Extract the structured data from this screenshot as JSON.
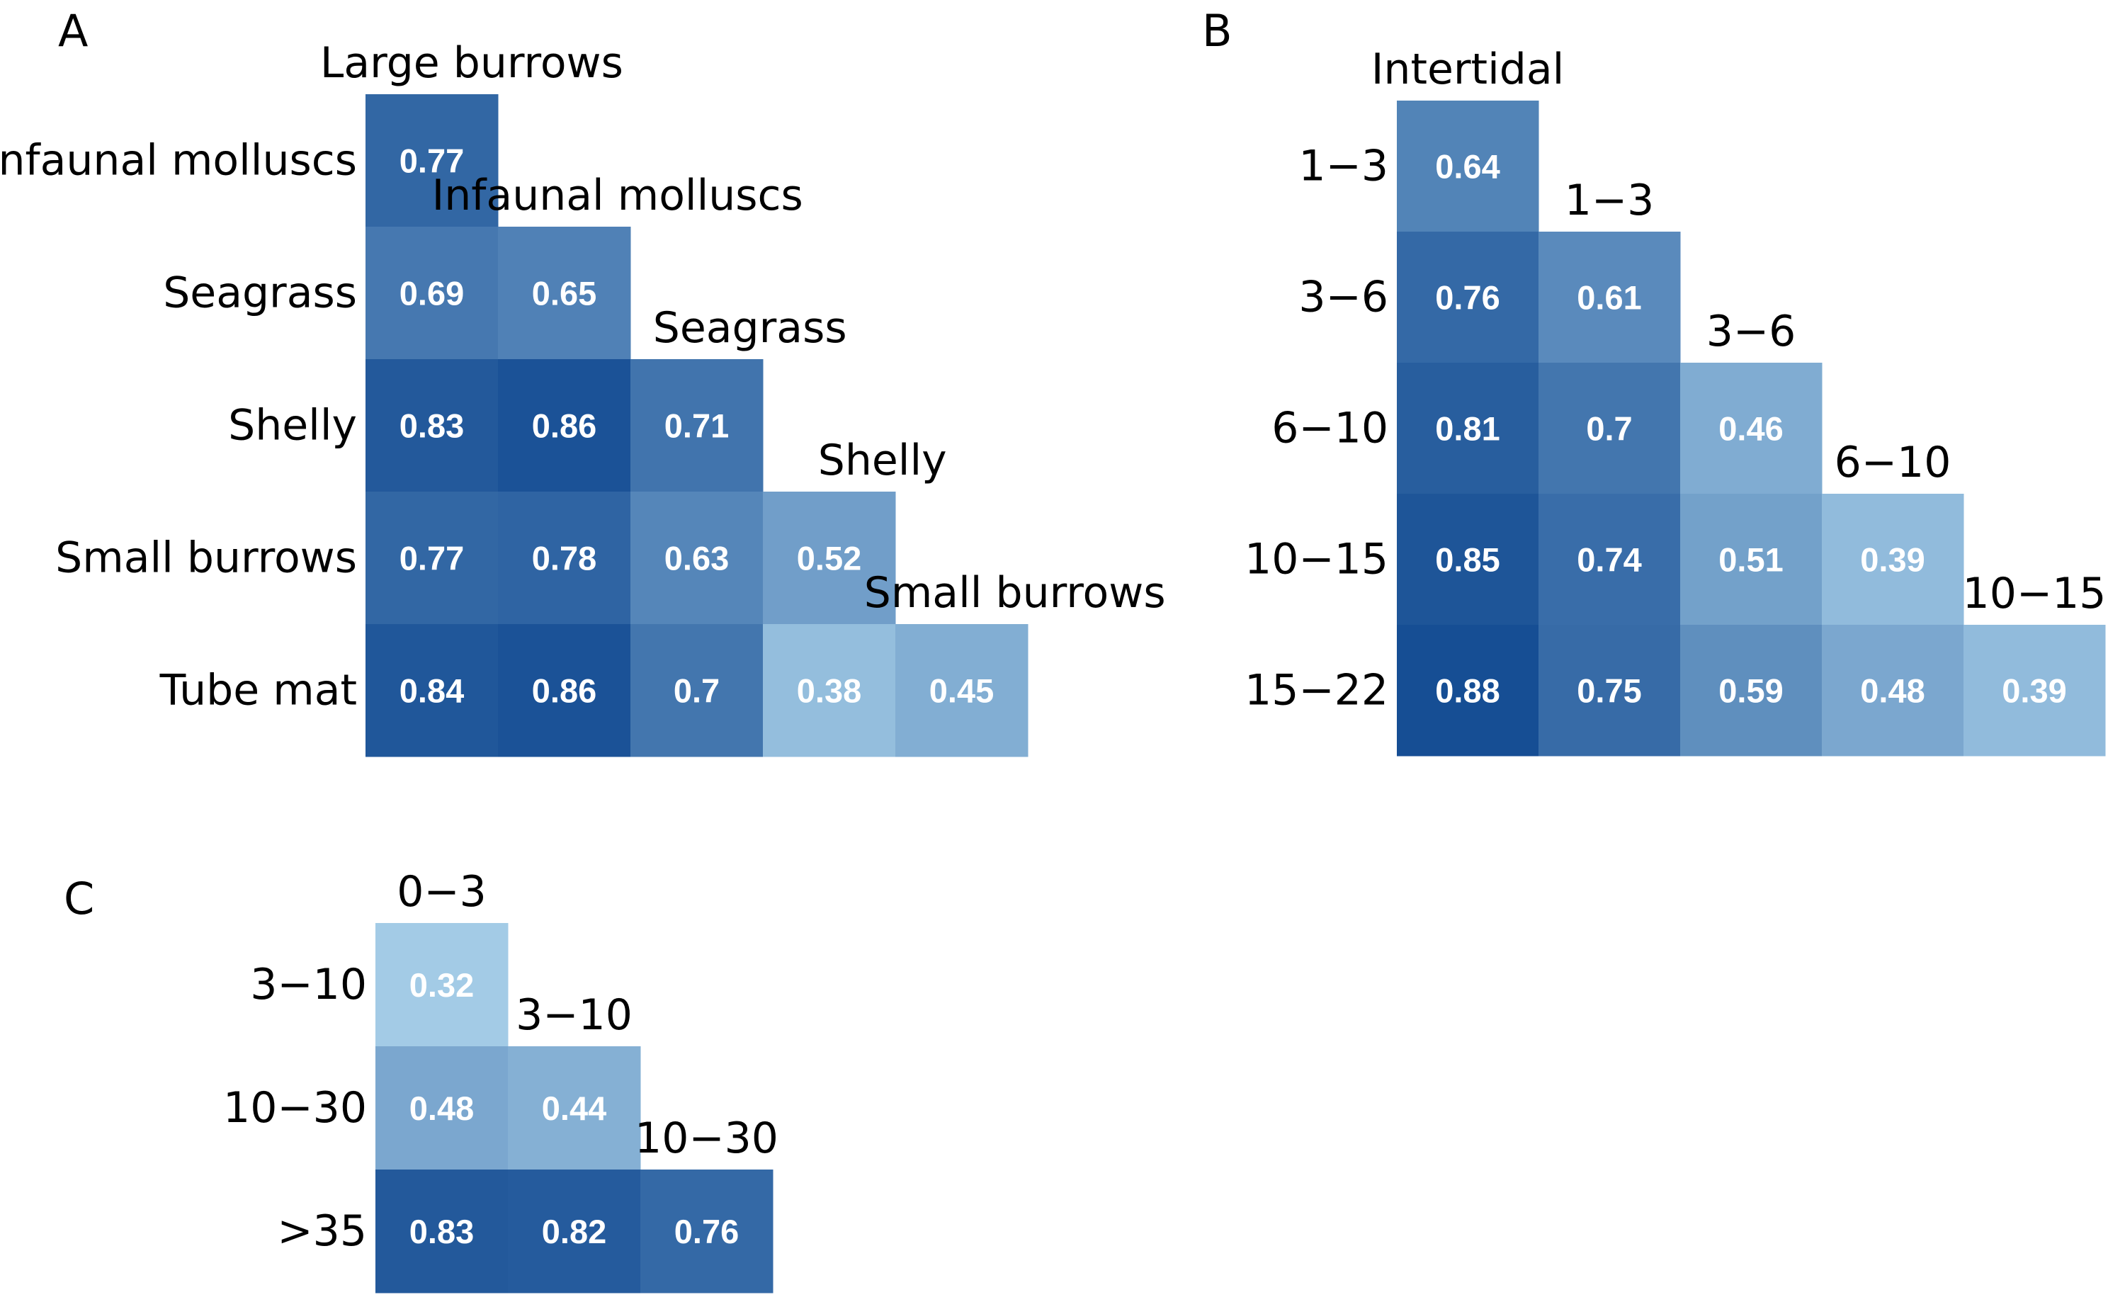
{
  "chart_data": [
    {
      "type": "heatmap",
      "panel": "A",
      "columns": [
        "Large burrows",
        "Infaunal molluscs",
        "Seagrass",
        "Shelly",
        "Small burrows"
      ],
      "rows": [
        "Infaunal molluscs",
        "Seagrass",
        "Shelly",
        "Small burrows",
        "Tube mat"
      ],
      "values": [
        [
          0.77
        ],
        [
          0.69,
          0.65
        ],
        [
          0.83,
          0.86,
          0.71
        ],
        [
          0.77,
          0.78,
          0.63,
          0.52
        ],
        [
          0.84,
          0.86,
          0.7,
          0.38,
          0.45
        ]
      ],
      "labels": [
        [
          "0.77"
        ],
        [
          "0.69",
          "0.65"
        ],
        [
          "0.83",
          "0.86",
          "0.71"
        ],
        [
          "0.77",
          "0.78",
          "0.63",
          "0.52"
        ],
        [
          "0.84",
          "0.86",
          "0.7",
          "0.38",
          "0.45"
        ]
      ],
      "color_scale": "blues",
      "value_range": [
        0.32,
        0.88
      ]
    },
    {
      "type": "heatmap",
      "panel": "B",
      "columns": [
        "Intertidal",
        "1−3",
        "3−6",
        "6−10",
        "10−15"
      ],
      "rows": [
        "1−3",
        "3−6",
        "6−10",
        "10−15",
        "15−22"
      ],
      "values": [
        [
          0.64
        ],
        [
          0.76,
          0.61
        ],
        [
          0.81,
          0.7,
          0.46
        ],
        [
          0.85,
          0.74,
          0.51,
          0.39
        ],
        [
          0.88,
          0.75,
          0.59,
          0.48,
          0.39
        ]
      ],
      "labels": [
        [
          "0.64"
        ],
        [
          "0.76",
          "0.61"
        ],
        [
          "0.81",
          "0.7",
          "0.46"
        ],
        [
          "0.85",
          "0.74",
          "0.51",
          "0.39"
        ],
        [
          "0.88",
          "0.75",
          "0.59",
          "0.48",
          "0.39"
        ]
      ],
      "color_scale": "blues",
      "value_range": [
        0.32,
        0.88
      ]
    },
    {
      "type": "heatmap",
      "panel": "C",
      "columns": [
        "0−3",
        "3−10",
        "10−30"
      ],
      "rows": [
        "3−10",
        "10−30",
        ">35"
      ],
      "values": [
        [
          0.32
        ],
        [
          0.48,
          0.44
        ],
        [
          0.83,
          0.82,
          0.76
        ]
      ],
      "labels": [
        [
          "0.32"
        ],
        [
          "0.48",
          "0.44"
        ],
        [
          "0.83",
          "0.82",
          "0.76"
        ]
      ],
      "color_scale": "blues",
      "value_range": [
        0.32,
        0.88
      ]
    }
  ]
}
